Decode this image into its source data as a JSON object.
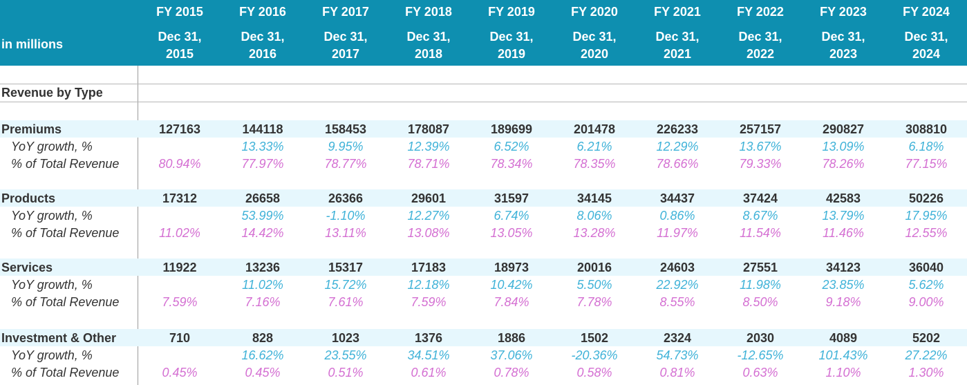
{
  "header": {
    "unit_label": "in millions",
    "columns": [
      {
        "fy": "FY 2015",
        "date_line1": "Dec 31,",
        "date_line2": "2015"
      },
      {
        "fy": "FY 2016",
        "date_line1": "Dec 31,",
        "date_line2": "2016"
      },
      {
        "fy": "FY 2017",
        "date_line1": "Dec 31,",
        "date_line2": "2017"
      },
      {
        "fy": "FY 2018",
        "date_line1": "Dec 31,",
        "date_line2": "2018"
      },
      {
        "fy": "FY 2019",
        "date_line1": "Dec 31,",
        "date_line2": "2019"
      },
      {
        "fy": "FY 2020",
        "date_line1": "Dec 31,",
        "date_line2": "2020"
      },
      {
        "fy": "FY 2021",
        "date_line1": "Dec 31,",
        "date_line2": "2021"
      },
      {
        "fy": "FY 2022",
        "date_line1": "Dec 31,",
        "date_line2": "2022"
      },
      {
        "fy": "FY 2023",
        "date_line1": "Dec 31,",
        "date_line2": "2023"
      },
      {
        "fy": "FY 2024",
        "date_line1": "Dec 31,",
        "date_line2": "2024"
      }
    ]
  },
  "section_title": "Revenue by Type",
  "groups": [
    {
      "name": "Premiums",
      "values": [
        "127163",
        "144118",
        "158453",
        "178087",
        "189699",
        "201478",
        "226233",
        "257157",
        "290827",
        "308810"
      ],
      "yoy_label": "YoY growth, %",
      "yoy": [
        "",
        "13.33%",
        "9.95%",
        "12.39%",
        "6.52%",
        "6.21%",
        "12.29%",
        "13.67%",
        "13.09%",
        "6.18%"
      ],
      "pct_label": "% of Total Revenue",
      "pct": [
        "80.94%",
        "77.97%",
        "78.77%",
        "78.71%",
        "78.34%",
        "78.35%",
        "78.66%",
        "79.33%",
        "78.26%",
        "77.15%"
      ]
    },
    {
      "name": "Products",
      "values": [
        "17312",
        "26658",
        "26366",
        "29601",
        "31597",
        "34145",
        "34437",
        "37424",
        "42583",
        "50226"
      ],
      "yoy_label": "YoY growth, %",
      "yoy": [
        "",
        "53.99%",
        "-1.10%",
        "12.27%",
        "6.74%",
        "8.06%",
        "0.86%",
        "8.67%",
        "13.79%",
        "17.95%"
      ],
      "pct_label": "% of Total Revenue",
      "pct": [
        "11.02%",
        "14.42%",
        "13.11%",
        "13.08%",
        "13.05%",
        "13.28%",
        "11.97%",
        "11.54%",
        "11.46%",
        "12.55%"
      ]
    },
    {
      "name": "Services",
      "values": [
        "11922",
        "13236",
        "15317",
        "17183",
        "18973",
        "20016",
        "24603",
        "27551",
        "34123",
        "36040"
      ],
      "yoy_label": "YoY growth, %",
      "yoy": [
        "",
        "11.02%",
        "15.72%",
        "12.18%",
        "10.42%",
        "5.50%",
        "22.92%",
        "11.98%",
        "23.85%",
        "5.62%"
      ],
      "pct_label": "% of Total Revenue",
      "pct": [
        "7.59%",
        "7.16%",
        "7.61%",
        "7.59%",
        "7.84%",
        "7.78%",
        "8.55%",
        "8.50%",
        "9.18%",
        "9.00%"
      ]
    },
    {
      "name": "Investment & Other",
      "values": [
        "710",
        "828",
        "1023",
        "1376",
        "1886",
        "1502",
        "2324",
        "2030",
        "4089",
        "5202"
      ],
      "yoy_label": "YoY growth, %",
      "yoy": [
        "",
        "16.62%",
        "23.55%",
        "34.51%",
        "37.06%",
        "-20.36%",
        "54.73%",
        "-12.65%",
        "101.43%",
        "27.22%"
      ],
      "pct_label": "% of Total Revenue",
      "pct": [
        "0.45%",
        "0.45%",
        "0.51%",
        "0.61%",
        "0.78%",
        "0.58%",
        "0.81%",
        "0.63%",
        "1.10%",
        "1.30%"
      ]
    }
  ],
  "colors": {
    "header_bg": "#0e8fb0",
    "highlight_row": "#e6f7fd",
    "yoy_text": "#3fb2d8",
    "pct_text": "#d46fd2"
  }
}
